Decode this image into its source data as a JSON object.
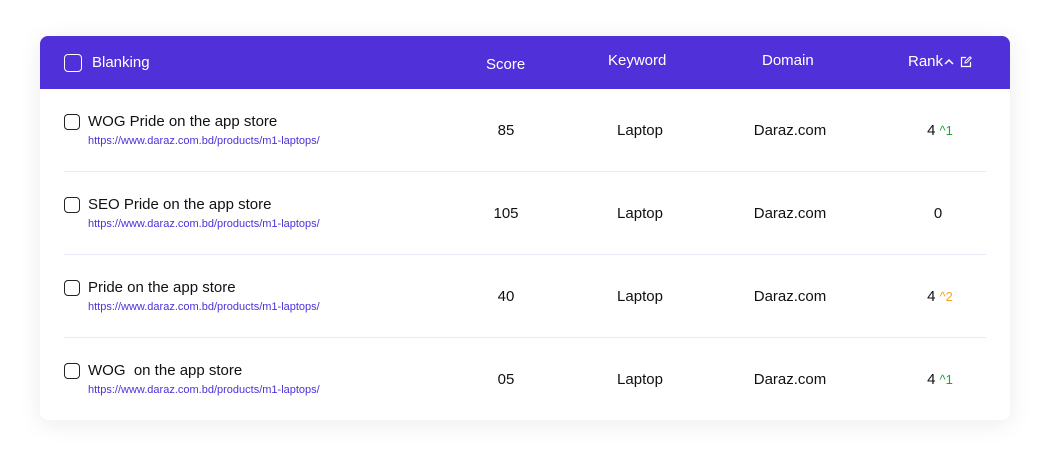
{
  "header": {
    "select_label": "Blanking",
    "score": "Score",
    "keyword": "Keyword",
    "domain": "Domain",
    "rank": "Rank",
    "sort_icon": "chevron-up-icon",
    "edit_icon": "edit-icon"
  },
  "colors": {
    "accent": "#4f30d9",
    "up_green": "#22a332",
    "up_orange": "#f5a623"
  },
  "rows": [
    {
      "title": "WOG Pride on the app store",
      "url": "https://www.daraz.com.bd/products/m1-laptops/",
      "score": "85",
      "keyword": "Laptop",
      "domain": "Daraz.com",
      "rank": "4",
      "delta": "^1",
      "delta_color": "#22a332"
    },
    {
      "title": "SEO Pride on the app store",
      "url": "https://www.daraz.com.bd/products/m1-laptops/",
      "score": "105",
      "keyword": "Laptop",
      "domain": "Daraz.com",
      "rank": "0",
      "delta": "",
      "delta_color": ""
    },
    {
      "title": "Pride on the app store",
      "url": "https://www.daraz.com.bd/products/m1-laptops/",
      "score": "40",
      "keyword": "Laptop",
      "domain": "Daraz.com",
      "rank": "4",
      "delta": "^2",
      "delta_color": "#f5a623"
    },
    {
      "title": "WOG  on the app store",
      "url": "https://www.daraz.com.bd/products/m1-laptops/",
      "score": "05",
      "keyword": "Laptop",
      "domain": "Daraz.com",
      "rank": "4",
      "delta": "^1",
      "delta_color": "#22a332"
    }
  ]
}
